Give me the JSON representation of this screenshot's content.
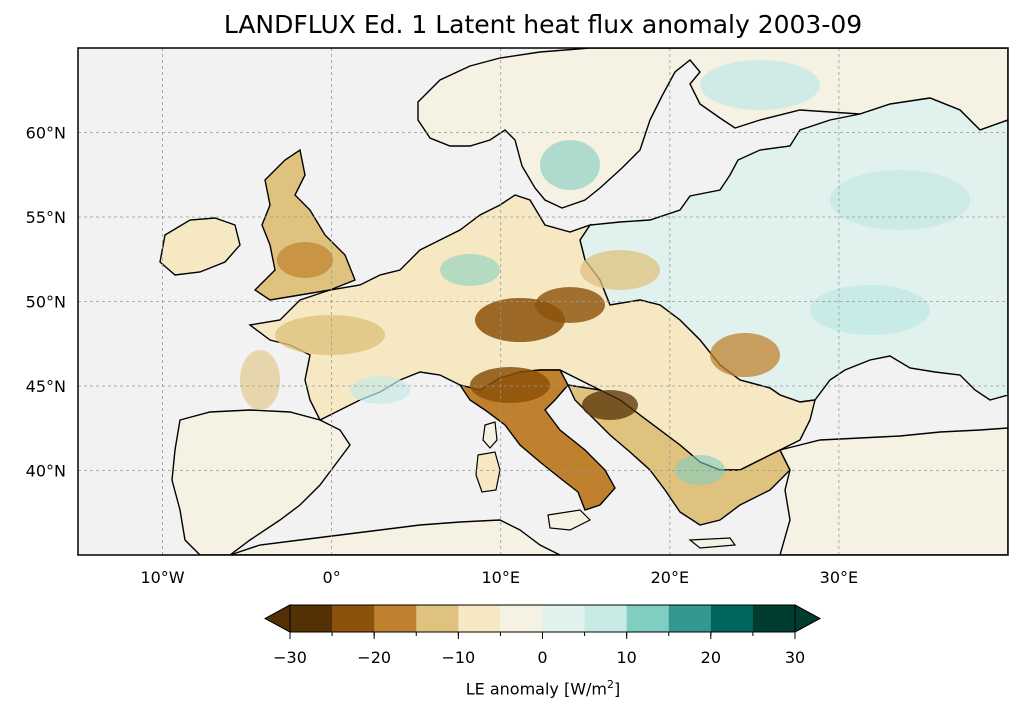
{
  "title": "LANDFLUX Ed. 1 Latent heat flux anomaly 2003-09",
  "map": {
    "extent": {
      "lon": [
        -15,
        40
      ],
      "lat": [
        35,
        65
      ]
    },
    "lon_ticks": [
      {
        "value": -10,
        "label": "10°W"
      },
      {
        "value": 0,
        "label": "0°"
      },
      {
        "value": 10,
        "label": "10°E"
      },
      {
        "value": 20,
        "label": "20°E"
      },
      {
        "value": 30,
        "label": "30°E"
      }
    ],
    "lat_ticks": [
      {
        "value": 60,
        "label": "60°N"
      },
      {
        "value": 55,
        "label": "55°N"
      },
      {
        "value": 50,
        "label": "50°N"
      },
      {
        "value": 45,
        "label": "45°N"
      },
      {
        "value": 40,
        "label": "40°N"
      }
    ],
    "gridlines": true,
    "ocean_color": "#f2f2f2",
    "coastline_color": "#000000"
  },
  "colorbar": {
    "label_text": "LE anomaly [W/m",
    "label_sup": "2",
    "label_close": "]",
    "levels": [
      -30,
      -25,
      -20,
      -15,
      -10,
      -5,
      0,
      5,
      10,
      15,
      20,
      25,
      30
    ],
    "tick_labels": [
      {
        "value": -30,
        "label": "−30"
      },
      {
        "value": -20,
        "label": "−20"
      },
      {
        "value": -10,
        "label": "−10"
      },
      {
        "value": 0,
        "label": "0"
      },
      {
        "value": 10,
        "label": "10"
      },
      {
        "value": 20,
        "label": "20"
      },
      {
        "value": 30,
        "label": "30"
      }
    ],
    "colors": [
      "#543005",
      "#8c510a",
      "#bf812d",
      "#dfc27d",
      "#f6e8c3",
      "#f5f1e3",
      "#e0f1ee",
      "#c7eae5",
      "#80cdc1",
      "#35978f",
      "#01665e",
      "#003c30"
    ],
    "extend_low_color": "#543005",
    "extend_high_color": "#003c30"
  }
}
